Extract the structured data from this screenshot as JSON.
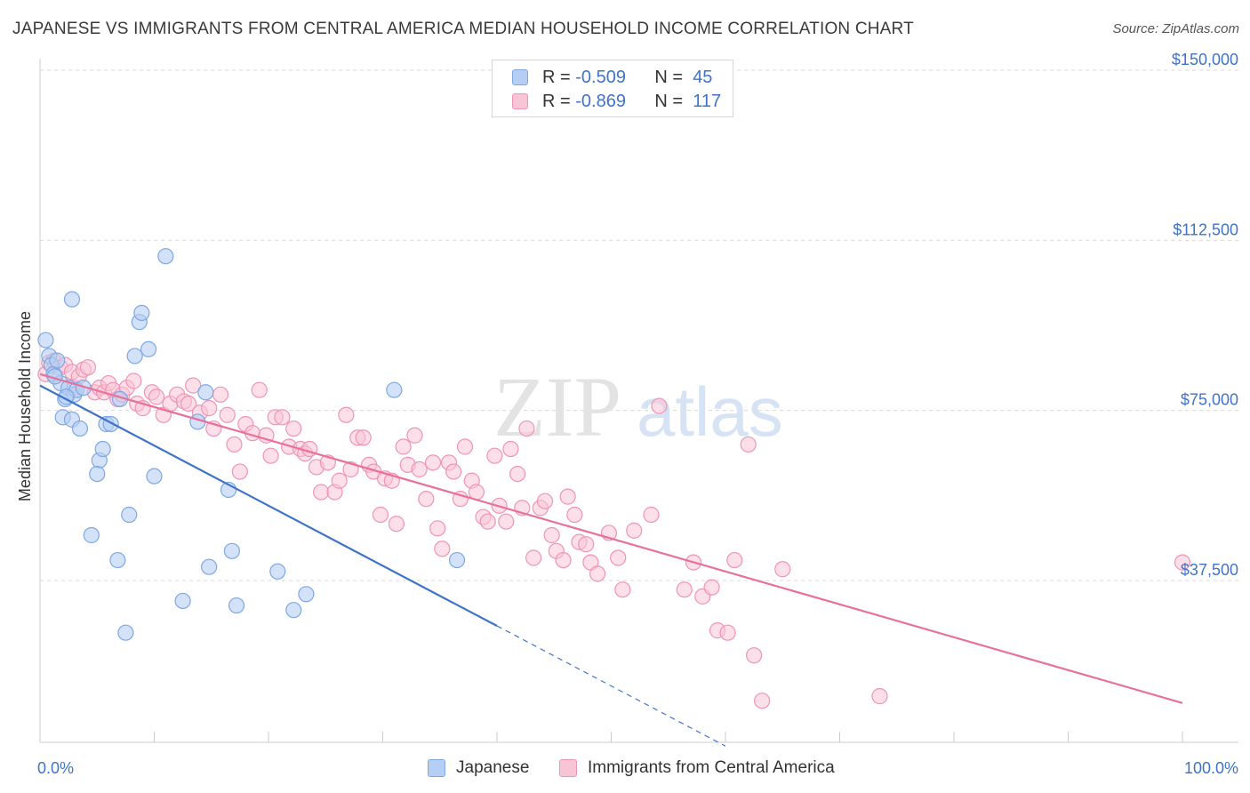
{
  "title": "JAPANESE VS IMMIGRANTS FROM CENTRAL AMERICA MEDIAN HOUSEHOLD INCOME CORRELATION CHART",
  "source": "Source: ZipAtlas.com",
  "watermark": {
    "zip": "ZIP",
    "atlas": "atlas"
  },
  "legend": {
    "japanese": {
      "r_label": "R =",
      "r_value": "-0.509",
      "n_label": "N =",
      "n_value": "45"
    },
    "central_america": {
      "r_label": "R =",
      "r_value": "-0.869",
      "n_label": "N =",
      "n_value": "117"
    }
  },
  "bottom_legend": {
    "japanese": "Japanese",
    "central_america": "Immigrants from Central America"
  },
  "colors": {
    "blue": "#3f73c9",
    "blue_fill": "#b5cff4",
    "pink": "#e8719b",
    "pink_fill": "#f9c5d6"
  },
  "chart_data": {
    "type": "scatter",
    "xlabel": "",
    "ylabel": "Median Household Income",
    "xlim": [
      0,
      100
    ],
    "ylim": [
      0,
      152000
    ],
    "x_tick_labels": {
      "left": "0.0%",
      "right": "100.0%"
    },
    "y_ticks": [
      37500,
      75000,
      112500,
      150000
    ],
    "y_tick_labels": [
      "$37,500",
      "$75,000",
      "$112,500",
      "$150,000"
    ],
    "series": [
      {
        "name": "Japanese",
        "trend": {
          "x0": 0,
          "y0": 80500,
          "x1": 40,
          "y1": 27500,
          "dashed_to_x": 60,
          "dashed_to_y": 1000
        },
        "points": [
          [
            0.5,
            90500
          ],
          [
            0.8,
            87000
          ],
          [
            1.0,
            85000
          ],
          [
            1.2,
            83000
          ],
          [
            1.5,
            86000
          ],
          [
            1.8,
            81000
          ],
          [
            2.0,
            73500
          ],
          [
            2.2,
            77500
          ],
          [
            2.5,
            80000
          ],
          [
            2.8,
            73000
          ],
          [
            3.0,
            78500
          ],
          [
            3.2,
            79500
          ],
          [
            3.5,
            71000
          ],
          [
            3.8,
            80000
          ],
          [
            4.5,
            47500
          ],
          [
            5.2,
            64000
          ],
          [
            5.5,
            66500
          ],
          [
            5.8,
            72000
          ],
          [
            6.2,
            72000
          ],
          [
            6.8,
            42000
          ],
          [
            7.0,
            77500
          ],
          [
            7.5,
            26000
          ],
          [
            7.8,
            52000
          ],
          [
            8.3,
            87000
          ],
          [
            8.7,
            94500
          ],
          [
            8.9,
            96500
          ],
          [
            9.5,
            88500
          ],
          [
            10.0,
            60500
          ],
          [
            11.0,
            109000
          ],
          [
            12.5,
            33000
          ],
          [
            13.8,
            72500
          ],
          [
            14.5,
            79000
          ],
          [
            14.8,
            40500
          ],
          [
            16.5,
            57500
          ],
          [
            16.8,
            44000
          ],
          [
            17.2,
            32000
          ],
          [
            20.8,
            39500
          ],
          [
            22.2,
            31000
          ],
          [
            23.3,
            34500
          ],
          [
            31.0,
            79500
          ],
          [
            36.5,
            42000
          ],
          [
            2.8,
            99500
          ],
          [
            5.0,
            61000
          ],
          [
            1.3,
            82500
          ],
          [
            2.3,
            78000
          ]
        ]
      },
      {
        "name": "Immigrants from Central America",
        "trend": {
          "x0": 0,
          "y0": 83000,
          "x1": 100,
          "y1": 10500
        },
        "points": [
          [
            0.5,
            83000
          ],
          [
            0.8,
            85500
          ],
          [
            1.2,
            86000
          ],
          [
            1.8,
            84500
          ],
          [
            2.2,
            85000
          ],
          [
            2.8,
            83500
          ],
          [
            3.0,
            80000
          ],
          [
            3.4,
            82500
          ],
          [
            3.8,
            84000
          ],
          [
            4.2,
            84500
          ],
          [
            4.8,
            79000
          ],
          [
            5.2,
            80000
          ],
          [
            5.6,
            79000
          ],
          [
            6.0,
            81000
          ],
          [
            6.4,
            79500
          ],
          [
            6.8,
            77500
          ],
          [
            7.2,
            78500
          ],
          [
            7.6,
            80000
          ],
          [
            8.2,
            81500
          ],
          [
            8.5,
            76500
          ],
          [
            9.0,
            75500
          ],
          [
            9.8,
            79000
          ],
          [
            10.2,
            78000
          ],
          [
            10.8,
            74000
          ],
          [
            11.4,
            76500
          ],
          [
            12.0,
            78500
          ],
          [
            12.6,
            77000
          ],
          [
            13.0,
            76500
          ],
          [
            13.4,
            80500
          ],
          [
            14.0,
            74500
          ],
          [
            14.8,
            75500
          ],
          [
            15.2,
            71000
          ],
          [
            15.8,
            78500
          ],
          [
            16.4,
            74000
          ],
          [
            17.0,
            67500
          ],
          [
            17.5,
            61500
          ],
          [
            18.0,
            72000
          ],
          [
            18.6,
            70000
          ],
          [
            19.2,
            79500
          ],
          [
            19.8,
            69500
          ],
          [
            20.2,
            65000
          ],
          [
            20.6,
            73500
          ],
          [
            21.2,
            73500
          ],
          [
            21.8,
            67000
          ],
          [
            22.2,
            71000
          ],
          [
            22.8,
            66500
          ],
          [
            23.2,
            65500
          ],
          [
            23.6,
            66500
          ],
          [
            24.2,
            62500
          ],
          [
            24.6,
            57000
          ],
          [
            25.2,
            63500
          ],
          [
            25.8,
            57000
          ],
          [
            26.2,
            59500
          ],
          [
            26.8,
            74000
          ],
          [
            27.2,
            62000
          ],
          [
            27.8,
            69000
          ],
          [
            28.3,
            69000
          ],
          [
            28.8,
            63000
          ],
          [
            29.2,
            61500
          ],
          [
            29.8,
            52000
          ],
          [
            30.2,
            60000
          ],
          [
            30.8,
            59500
          ],
          [
            31.2,
            50000
          ],
          [
            31.8,
            67000
          ],
          [
            32.2,
            63000
          ],
          [
            32.8,
            69500
          ],
          [
            33.2,
            62000
          ],
          [
            33.8,
            55500
          ],
          [
            34.4,
            63500
          ],
          [
            34.8,
            49000
          ],
          [
            35.2,
            44500
          ],
          [
            35.8,
            63500
          ],
          [
            36.2,
            61500
          ],
          [
            36.8,
            55500
          ],
          [
            37.2,
            67000
          ],
          [
            37.8,
            59500
          ],
          [
            38.2,
            57000
          ],
          [
            38.8,
            51500
          ],
          [
            39.2,
            50500
          ],
          [
            39.8,
            65000
          ],
          [
            40.2,
            54000
          ],
          [
            40.8,
            50500
          ],
          [
            41.2,
            66500
          ],
          [
            41.8,
            61000
          ],
          [
            42.2,
            53500
          ],
          [
            42.6,
            71000
          ],
          [
            43.2,
            42500
          ],
          [
            43.8,
            53500
          ],
          [
            44.2,
            55000
          ],
          [
            44.8,
            47500
          ],
          [
            45.2,
            44000
          ],
          [
            45.8,
            42000
          ],
          [
            46.2,
            56000
          ],
          [
            46.8,
            52000
          ],
          [
            47.2,
            46000
          ],
          [
            47.8,
            45500
          ],
          [
            48.2,
            41500
          ],
          [
            48.8,
            39000
          ],
          [
            49.8,
            48000
          ],
          [
            50.6,
            42500
          ],
          [
            51.0,
            35500
          ],
          [
            52.0,
            48500
          ],
          [
            53.5,
            52000
          ],
          [
            54.2,
            76000
          ],
          [
            56.4,
            35500
          ],
          [
            57.2,
            41500
          ],
          [
            58.0,
            34000
          ],
          [
            58.8,
            36000
          ],
          [
            59.3,
            26500
          ],
          [
            60.2,
            26000
          ],
          [
            60.8,
            42000
          ],
          [
            62.0,
            67500
          ],
          [
            62.5,
            21000
          ],
          [
            63.2,
            11000
          ],
          [
            65.0,
            40000
          ],
          [
            73.5,
            12000
          ],
          [
            100.0,
            41500
          ]
        ]
      }
    ]
  }
}
